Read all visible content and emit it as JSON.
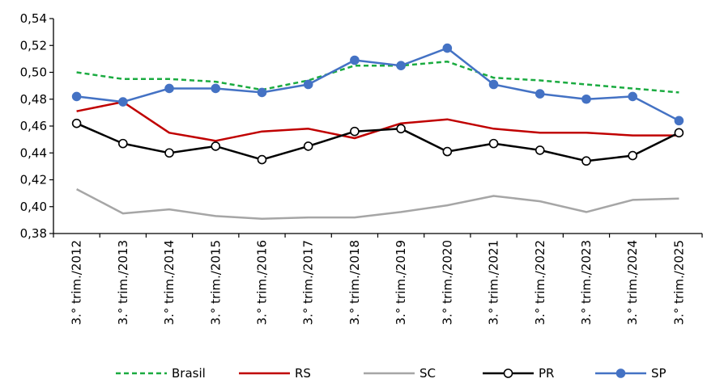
{
  "chart_data": {
    "type": "line",
    "title": "",
    "xlabel": "",
    "ylabel": "",
    "ylim": [
      0.38,
      0.54
    ],
    "yticks": [
      "0,38",
      "0,40",
      "0,42",
      "0,44",
      "0,46",
      "0,48",
      "0,50",
      "0,52",
      "0,54"
    ],
    "grid": false,
    "legend_position": "bottom",
    "categories": [
      "3.° trim./2012",
      "3.° trim./2013",
      "3.° trim./2014",
      "3.° trim./2015",
      "3.° trim./2016",
      "3.° trim./2017",
      "3.° trim./2018",
      "3.° trim./2019",
      "3.° trim./2020",
      "3.° trim./2021",
      "3.° trim./2022",
      "3.° trim./2023",
      "3.° trim./2024",
      "3.° trim./2025"
    ],
    "series": [
      {
        "name": "Brasil",
        "color": "#1aab40",
        "style": "dashed",
        "marker": "none",
        "values": [
          0.5,
          0.495,
          0.495,
          0.493,
          0.487,
          0.494,
          0.505,
          0.505,
          0.508,
          0.496,
          0.494,
          0.491,
          0.488,
          0.485
        ]
      },
      {
        "name": "RS",
        "color": "#c00000",
        "style": "solid",
        "marker": "none",
        "values": [
          0.471,
          0.478,
          0.455,
          0.449,
          0.456,
          0.458,
          0.451,
          0.462,
          0.465,
          0.458,
          0.455,
          0.455,
          0.453,
          0.453
        ]
      },
      {
        "name": "SC",
        "color": "#a6a6a6",
        "style": "solid",
        "marker": "none",
        "values": [
          0.413,
          0.395,
          0.398,
          0.393,
          0.391,
          0.392,
          0.392,
          0.396,
          0.401,
          0.408,
          0.404,
          0.396,
          0.405,
          0.406
        ]
      },
      {
        "name": "PR",
        "color": "#000000",
        "style": "solid",
        "marker": "hollow-circle",
        "values": [
          0.462,
          0.447,
          0.44,
          0.445,
          0.435,
          0.445,
          0.456,
          0.458,
          0.441,
          0.447,
          0.442,
          0.434,
          0.438,
          0.455
        ]
      },
      {
        "name": "SP",
        "color": "#4472c4",
        "style": "solid",
        "marker": "filled-circle",
        "values": [
          0.482,
          0.478,
          0.488,
          0.488,
          0.485,
          0.491,
          0.509,
          0.505,
          0.518,
          0.491,
          0.484,
          0.48,
          0.482,
          0.464
        ]
      }
    ]
  }
}
